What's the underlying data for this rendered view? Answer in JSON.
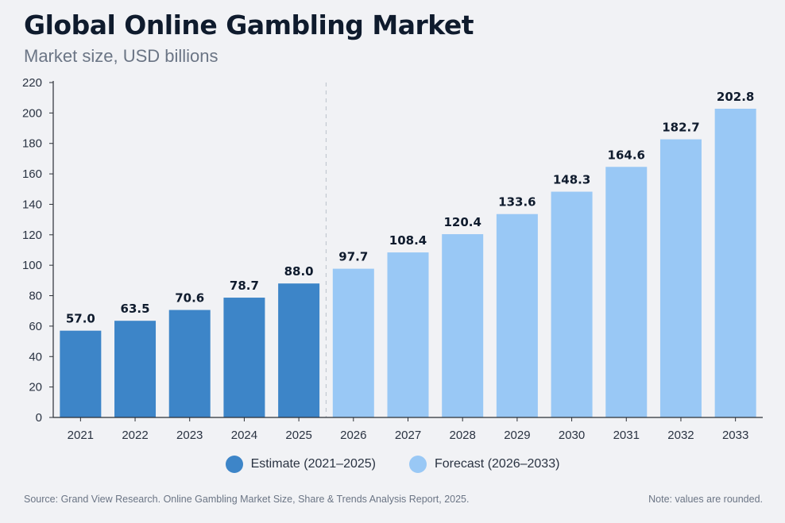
{
  "chart_data": {
    "type": "bar",
    "title": "Global Online Gambling Market",
    "subtitle": "Market size, USD billions",
    "xlabel": "",
    "ylabel": "",
    "ylim": [
      0,
      220
    ],
    "yticks": [
      0,
      20,
      40,
      60,
      80,
      100,
      120,
      140,
      160,
      180,
      200,
      220
    ],
    "grid": false,
    "legend_position": "bottom-center",
    "categories": [
      "2021",
      "2022",
      "2023",
      "2024",
      "2025",
      "2026",
      "2027",
      "2028",
      "2029",
      "2030",
      "2031",
      "2032",
      "2033"
    ],
    "values": [
      57.0,
      63.5,
      70.6,
      78.7,
      88.0,
      97.7,
      108.4,
      120.4,
      133.6,
      148.3,
      164.6,
      182.7,
      202.8
    ],
    "value_labels": [
      "57.0",
      "63.5",
      "70.6",
      "78.7",
      "88.0",
      "97.7",
      "108.4",
      "120.4",
      "133.6",
      "148.3",
      "164.6",
      "182.7",
      "202.8"
    ],
    "series": [
      {
        "name": "Estimate (2021–2025)",
        "categories": [
          "2021",
          "2022",
          "2023",
          "2024",
          "2025"
        ],
        "color": "#3d85c8"
      },
      {
        "name": "Forecast (2026–2033)",
        "categories": [
          "2026",
          "2027",
          "2028",
          "2029",
          "2030",
          "2031",
          "2032",
          "2033"
        ],
        "color": "#99c8f5"
      }
    ],
    "divider_between": [
      "2025",
      "2026"
    ]
  },
  "footer": {
    "source_label": "Source:",
    "source_text": " Grand View Research. Online Gambling Market Size, Share & Trends Analysis Report, 2025.",
    "note": "Note: values are rounded."
  },
  "colors": {
    "estimate": "#3d85c8",
    "forecast": "#99c8f5",
    "axis": "#2b2f36",
    "text": "#0f1b2d",
    "muted": "#6b7585",
    "background": "#f1f2f5"
  }
}
